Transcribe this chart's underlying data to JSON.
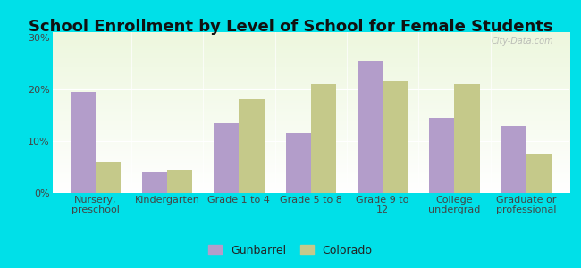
{
  "title": "School Enrollment by Level of School for Female Students",
  "categories": [
    "Nursery,\npreschool",
    "Kindergarten",
    "Grade 1 to 4",
    "Grade 5 to 8",
    "Grade 9 to\n12",
    "College\nundergrad",
    "Graduate or\nprofessional"
  ],
  "gunbarrel_values": [
    19.5,
    4.0,
    13.5,
    11.5,
    25.5,
    14.5,
    13.0
  ],
  "colorado_values": [
    6.0,
    4.5,
    18.0,
    21.0,
    21.5,
    21.0,
    7.5
  ],
  "gunbarrel_color": "#b39dca",
  "colorado_color": "#c5c98a",
  "background_outer": "#00e0e8",
  "yticks": [
    0,
    10,
    20,
    30
  ],
  "ytick_labels": [
    "0%",
    "10%",
    "20%",
    "30%"
  ],
  "ylim": [
    0,
    31
  ],
  "legend_labels": [
    "Gunbarrel",
    "Colorado"
  ],
  "bar_width": 0.35,
  "title_fontsize": 13,
  "tick_fontsize": 8,
  "legend_fontsize": 9
}
